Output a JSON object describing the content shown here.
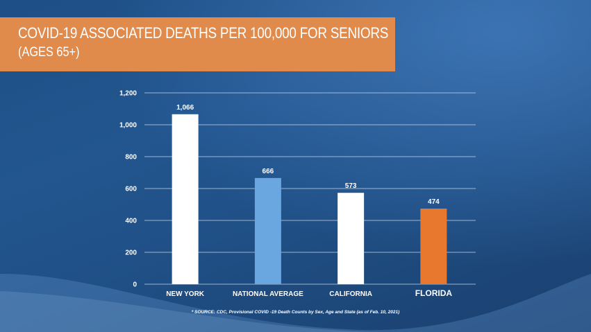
{
  "chart_data": {
    "type": "bar",
    "title": "COVID-19 ASSOCIATED DEATHS PER 100,000 FOR SENIORS",
    "subtitle": "(AGES 65+)",
    "categories": [
      "NEW YORK",
      "NATIONAL AVERAGE",
      "CALIFORNIA",
      "FLORIDA"
    ],
    "values": [
      1066,
      666,
      573,
      474
    ],
    "value_labels": [
      "1,066",
      "666",
      "573",
      "474"
    ],
    "bar_colors": [
      "#ffffff",
      "#6aa6e0",
      "#ffffff",
      "#e9782f"
    ],
    "emphasized_category": "FLORIDA",
    "yticks": [
      0,
      200,
      400,
      600,
      800,
      1000,
      1200
    ],
    "ytick_labels": [
      "0",
      "200",
      "400",
      "600",
      "800",
      "1,000",
      "1,200"
    ],
    "ylim": [
      0,
      1200
    ],
    "grid": true,
    "xlabel": "",
    "ylabel": "",
    "source": "* SOURCE: CDC, Provisional COVID -19 Death Counts by Sex, Age and State (as of Feb. 10, 2021)"
  },
  "colors": {
    "title_box": "#e08a4c",
    "gridline": "#c9d6e6"
  }
}
